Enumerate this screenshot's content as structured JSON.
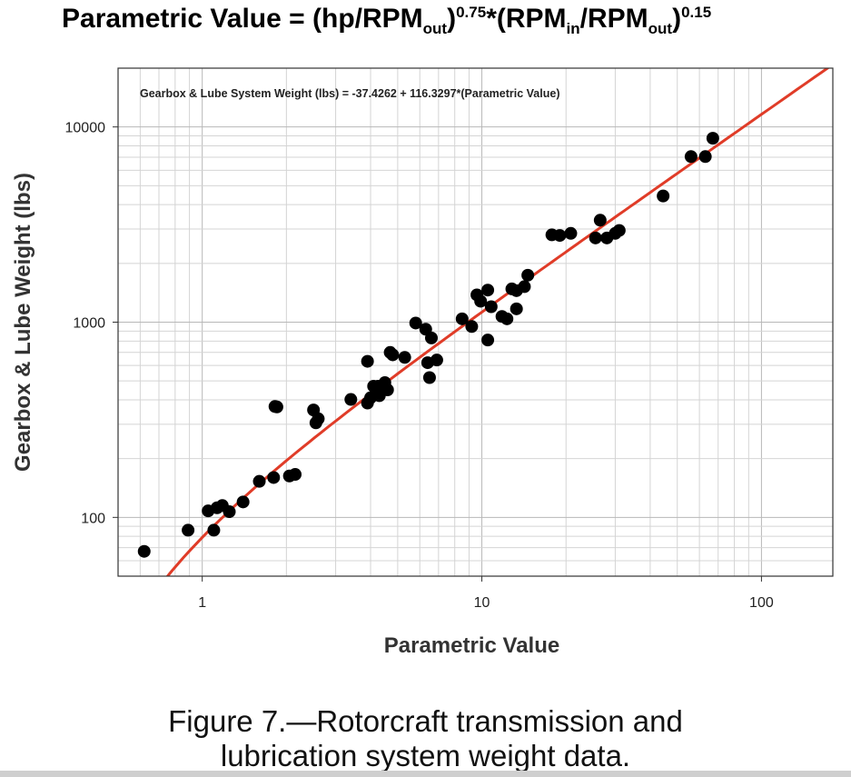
{
  "title": {
    "prefix": "Parametric Value = (hp/RPM",
    "sub1": "out",
    "paren1": ")",
    "sup1": "0.75",
    "mult": "*(RPM",
    "sub2": "in",
    "slash": "/RPM",
    "sub3": "out",
    "paren2": ")",
    "sup2": "0.15"
  },
  "chart_data": {
    "type": "scatter",
    "title": "Parametric Value = (hp/RPMout)^0.75*(RPMin/RPMout)^0.15",
    "xlabel": "Parametric Value",
    "ylabel": "Gearbox & Lube Weight (lbs)",
    "x_scale": "log",
    "y_scale": "log",
    "xlim": [
      0.5,
      180
    ],
    "ylim": [
      50,
      20000
    ],
    "x_ticks": [
      1,
      10,
      100
    ],
    "x_tick_labels": [
      "1",
      "10",
      "100"
    ],
    "y_ticks": [
      100,
      1000,
      10000
    ],
    "y_tick_labels": [
      "100",
      "1000",
      "10000"
    ],
    "grid": true,
    "annotation": "Gearbox & Lube System Weight (lbs) = -37.4262 + 116.3297*(Parametric Value)",
    "fit_line": {
      "intercept": -37.4262,
      "slope": 116.3297,
      "color": "#e03c28"
    },
    "marker_color": "#000000",
    "points": [
      [
        0.62,
        67
      ],
      [
        0.89,
        86
      ],
      [
        1.05,
        108
      ],
      [
        1.1,
        86
      ],
      [
        1.13,
        112
      ],
      [
        1.18,
        115
      ],
      [
        1.25,
        107
      ],
      [
        1.4,
        120
      ],
      [
        1.6,
        153
      ],
      [
        1.8,
        160
      ],
      [
        2.05,
        163
      ],
      [
        2.15,
        166
      ],
      [
        1.82,
        370
      ],
      [
        1.85,
        368
      ],
      [
        2.5,
        355
      ],
      [
        2.55,
        305
      ],
      [
        2.6,
        320
      ],
      [
        3.4,
        402
      ],
      [
        3.9,
        630
      ],
      [
        3.9,
        385
      ],
      [
        4.0,
        410
      ],
      [
        4.1,
        470
      ],
      [
        4.3,
        420
      ],
      [
        4.5,
        490
      ],
      [
        4.6,
        450
      ],
      [
        4.7,
        700
      ],
      [
        4.8,
        680
      ],
      [
        5.3,
        660
      ],
      [
        4.25,
        470
      ],
      [
        5.8,
        990
      ],
      [
        6.3,
        920
      ],
      [
        6.6,
        830
      ],
      [
        6.4,
        620
      ],
      [
        6.5,
        520
      ],
      [
        6.9,
        640
      ],
      [
        8.5,
        1040
      ],
      [
        9.2,
        950
      ],
      [
        9.6,
        1380
      ],
      [
        9.9,
        1280
      ],
      [
        10.5,
        1460
      ],
      [
        10.8,
        1200
      ],
      [
        10.5,
        810
      ],
      [
        11.8,
        1070
      ],
      [
        12.3,
        1040
      ],
      [
        12.8,
        1480
      ],
      [
        13.3,
        1450
      ],
      [
        13.3,
        1170
      ],
      [
        14.2,
        1520
      ],
      [
        14.6,
        1740
      ],
      [
        17.8,
        2800
      ],
      [
        19.0,
        2780
      ],
      [
        20.8,
        2850
      ],
      [
        25.5,
        2700
      ],
      [
        26.5,
        3330
      ],
      [
        28.0,
        2700
      ],
      [
        30.0,
        2850
      ],
      [
        31.0,
        2950
      ],
      [
        44.5,
        4430
      ],
      [
        56.0,
        7050
      ],
      [
        63.0,
        7050
      ],
      [
        67.0,
        8750
      ]
    ]
  }
}
